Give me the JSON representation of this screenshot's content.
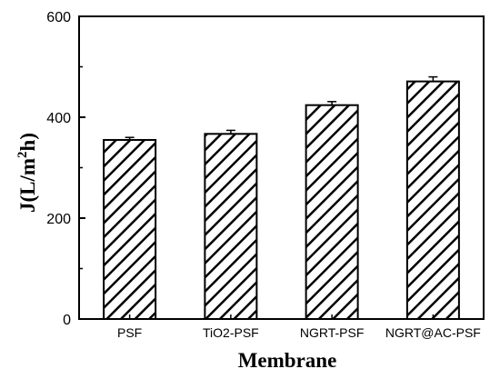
{
  "chart_data": {
    "type": "bar",
    "title": "",
    "xlabel": "Membrane",
    "ylabel_main": "J(L/m",
    "ylabel_sup": "2",
    "ylabel_end": "h)",
    "categories": [
      "PSF",
      "TiO2-PSF",
      "NGRT-PSF",
      "NGRT@AC-PSF"
    ],
    "series": [
      {
        "values": [
          355,
          367,
          424,
          471
        ],
        "errors": [
          5,
          7,
          7,
          9
        ]
      }
    ],
    "ylim": [
      0,
      600
    ],
    "yticks": [
      0,
      200,
      400,
      600
    ],
    "ytick_labels": [
      "0",
      "200",
      "400",
      "600"
    ],
    "grid": false,
    "legend": "none",
    "bar_fill": "hatched",
    "colors": {
      "bar_stroke": "#000000",
      "hatch": "#000000",
      "background": "#ffffff"
    }
  }
}
